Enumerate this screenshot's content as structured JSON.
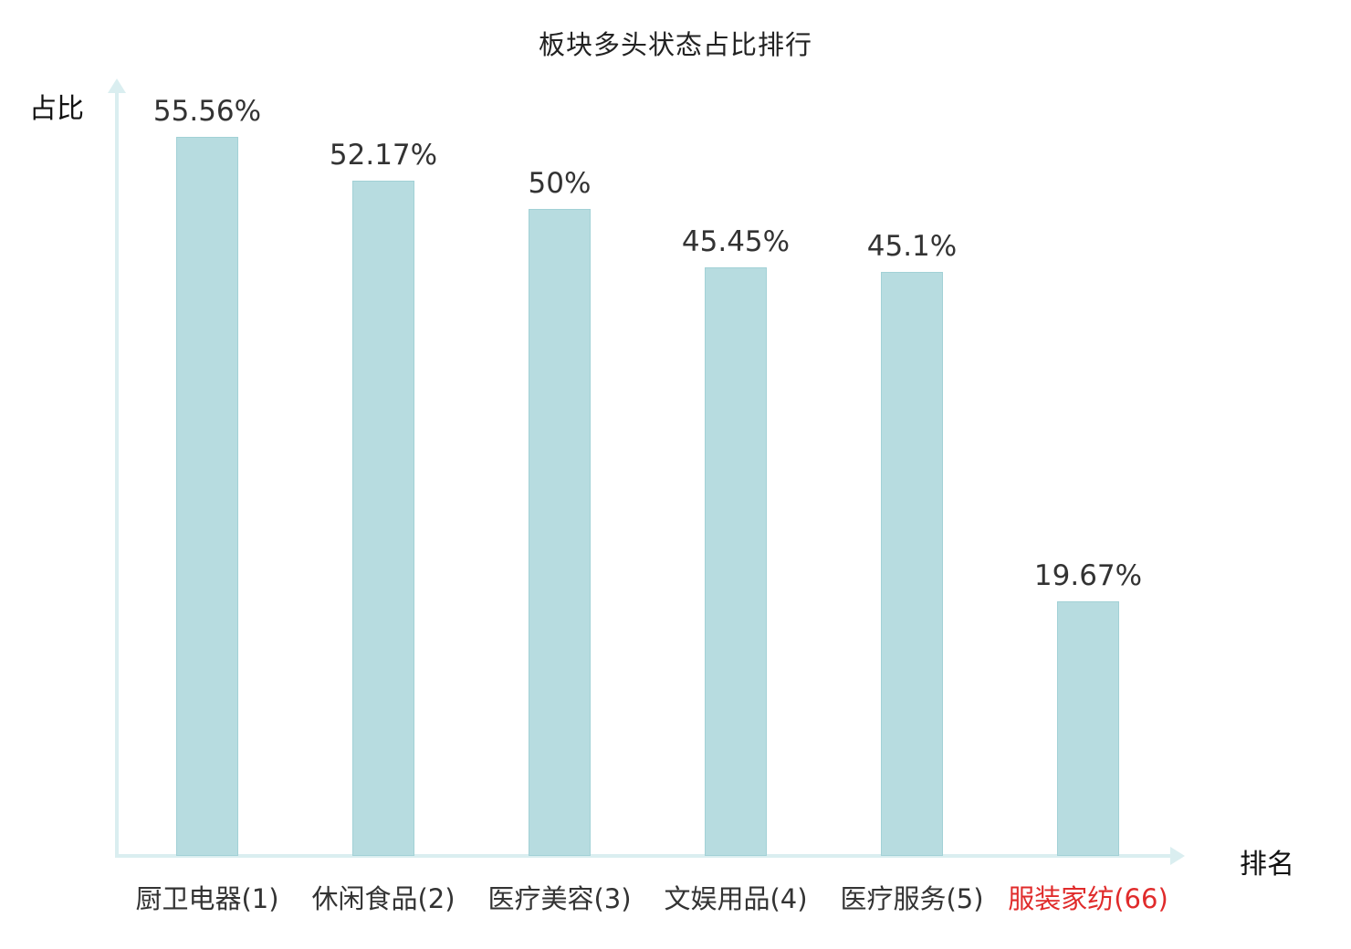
{
  "chart_data": {
    "type": "bar",
    "title": "板块多头状态占比排行",
    "xlabel": "排名",
    "ylabel": "占比",
    "categories": [
      "厨卫电器(1)",
      "休闲食品(2)",
      "医疗美容(3)",
      "文娱用品(4)",
      "医疗服务(5)",
      "服装家纺(66)"
    ],
    "values": [
      55.56,
      52.17,
      50,
      45.45,
      45.1,
      19.67
    ],
    "value_labels": [
      "55.56%",
      "52.17%",
      "50%",
      "45.45%",
      "45.1%",
      "19.67%"
    ],
    "category_colors": [
      "#333333",
      "#333333",
      "#333333",
      "#333333",
      "#333333",
      "#e02b2b"
    ],
    "ylim": [
      0,
      60
    ],
    "grid": false,
    "legend": false,
    "bar_color": "#b7dce0",
    "bar_border_color": "#a2d1d6",
    "axis_color": "#daeef0",
    "value_label_color": "#333333",
    "highlight_color": "#e02b2b"
  }
}
